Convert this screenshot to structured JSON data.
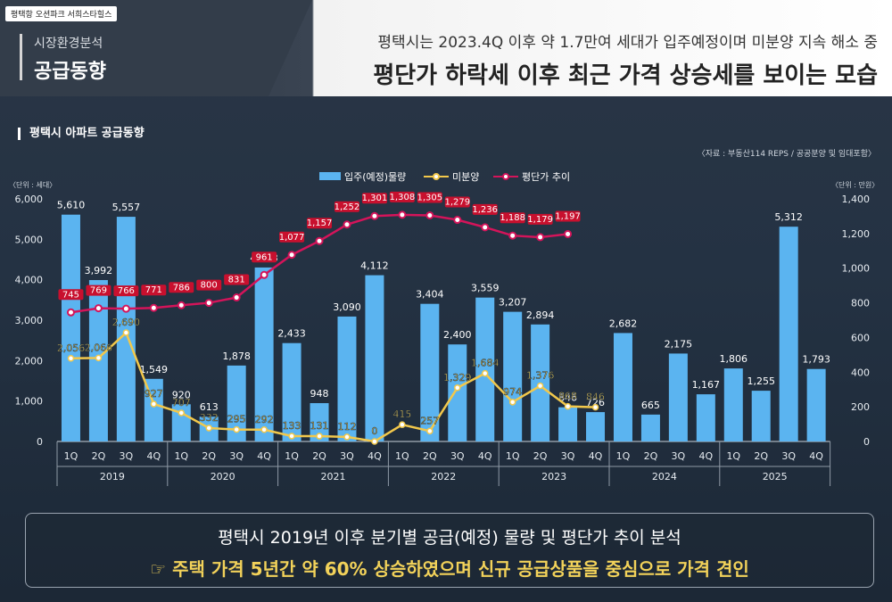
{
  "brand": "평택항 오션파크 서희스타힐스",
  "category": {
    "sub": "시장환경분석",
    "title": "공급동향"
  },
  "headline": {
    "line1": "평택시는 2023.4Q 이후 약 1.7만여 세대가 입주예정이며 미분양 지속 해소 중",
    "line2": "평단가 하락세 이후 최근 가격 상승세를 보이는 모습"
  },
  "section_title": "평택시 아파트 공급동향",
  "source": "〈자료 : 부동산114 REPS / 공공분양 및 임대포함〉",
  "unit_left": "〈단위 : 세대〉",
  "unit_right": "〈단위 : 만원〉",
  "summary": {
    "line1": "평택시 2019년 이후 분기별 공급(예정) 물량 및 평단가 추이 분석",
    "line2": "☞ 주택 가격 5년간 약 60% 상승하였으며 신규 공급상품을 중심으로 가격 견인"
  },
  "colors": {
    "bar": "#5bb4f0",
    "unsold": "#f2c84b",
    "price": "#d4145a",
    "price_label_bg": "#c8102e"
  },
  "chart_data": {
    "type": "bar",
    "quarters": [
      "1Q",
      "2Q",
      "3Q",
      "4Q",
      "1Q",
      "2Q",
      "3Q",
      "4Q",
      "1Q",
      "2Q",
      "3Q",
      "4Q",
      "1Q",
      "2Q",
      "3Q",
      "4Q",
      "1Q",
      "2Q",
      "3Q",
      "4Q",
      "1Q",
      "2Q",
      "3Q",
      "4Q",
      "1Q",
      "2Q",
      "3Q",
      "4Q"
    ],
    "years": [
      "2019",
      "2020",
      "2021",
      "2022",
      "2023",
      "2024",
      "2025"
    ],
    "legend": [
      "입주(예정)물량",
      "미분양",
      "평단가 추이"
    ],
    "legend_position": "top-center",
    "left_axis": {
      "ylim": [
        0,
        6000
      ],
      "ticks": [
        "0",
        "1,000",
        "2,000",
        "3,000",
        "4,000",
        "5,000",
        "6,000"
      ]
    },
    "right_axis": {
      "ylim": [
        0,
        1400
      ],
      "ticks": [
        "0",
        "200",
        "400",
        "600",
        "800",
        "1,000",
        "1,200",
        "1,400"
      ]
    },
    "series": [
      {
        "name": "입주(예정)물량",
        "kind": "bar",
        "axis": "left",
        "values": [
          5610,
          3992,
          5557,
          1549,
          920,
          613,
          1878,
          4303,
          2433,
          948,
          3090,
          4112,
          3404,
          2400,
          3559,
          3207,
          2894,
          846,
          726,
          2682,
          665,
          2175,
          1167,
          1806,
          1255,
          5312,
          1793
        ],
        "labels": [
          "5,610",
          "3,992",
          "5,557",
          "1,549",
          "920",
          "613",
          "1,878",
          "4,303",
          "2,433",
          "948",
          "3,090",
          "4,112",
          "3,404",
          "2,400",
          "3,559",
          "3,207",
          "2,894",
          "846",
          "726",
          "2,682",
          "665",
          "2,175",
          "1,167",
          "1,806",
          "1,255",
          "5,312",
          "1,793"
        ],
        "bar_slots": [
          0,
          1,
          2,
          3,
          4,
          5,
          6,
          7,
          8,
          9,
          10,
          11,
          13,
          14,
          15,
          16,
          17,
          18,
          19,
          20,
          21,
          22,
          23,
          24,
          25,
          26,
          27
        ]
      },
      {
        "name": "미분양",
        "kind": "line",
        "axis": "left",
        "values": [
          2056,
          2066,
          2690,
          927,
          707,
          332,
          295,
          292,
          133,
          131,
          112,
          0,
          415,
          257,
          1329,
          1684,
          974,
          1376,
          868,
          846
        ],
        "labels": [
          "2,056",
          "2,066",
          "2,690",
          "927",
          "707",
          "332",
          "295",
          "292",
          "133",
          "131",
          "112",
          "0",
          "415",
          "257",
          "1,329",
          "1,684",
          "974",
          "1,376",
          "868",
          "846"
        ],
        "slots": [
          0,
          1,
          2,
          3,
          4,
          5,
          6,
          7,
          8,
          9,
          10,
          11,
          12,
          13,
          14,
          15,
          16,
          17,
          18,
          19
        ]
      },
      {
        "name": "평단가 추이",
        "kind": "line",
        "axis": "right",
        "values": [
          745,
          769,
          766,
          771,
          786,
          800,
          831,
          961,
          1077,
          1157,
          1252,
          1301,
          1308,
          1305,
          1279,
          1236,
          1188,
          1179,
          1197
        ],
        "labels": [
          "745",
          "769",
          "766",
          "771",
          "786",
          "800",
          "831",
          "961",
          "1,077",
          "1,157",
          "1,252",
          "1,301",
          "1,308",
          "1,305",
          "1,279",
          "1,236",
          "1,188",
          "1,179",
          "1,197"
        ],
        "slots": [
          0,
          1,
          2,
          3,
          4,
          5,
          6,
          7,
          8,
          9,
          10,
          11,
          12,
          13,
          14,
          15,
          16,
          17,
          18
        ]
      }
    ]
  }
}
